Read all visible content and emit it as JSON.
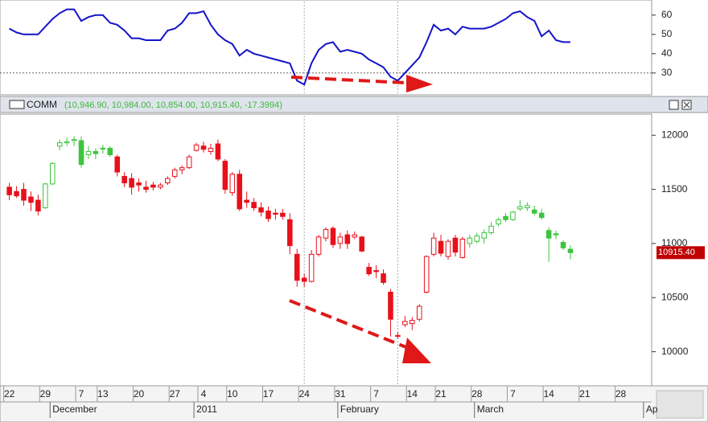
{
  "chart_data": [
    {
      "type": "line",
      "x": [
        0,
        1,
        2,
        3,
        4,
        5,
        6,
        7,
        8,
        9,
        10,
        11,
        12,
        13,
        14,
        15,
        16,
        17,
        18,
        19,
        20,
        21,
        22,
        23,
        24,
        25,
        26,
        27,
        28,
        29,
        30,
        31,
        32,
        33,
        34,
        35,
        36,
        37,
        38,
        39,
        40,
        41,
        42,
        43,
        44,
        45,
        46,
        47,
        48,
        49,
        50,
        51,
        52,
        53,
        54,
        55,
        56,
        57,
        58,
        59,
        60,
        61,
        62,
        63,
        64,
        65,
        66,
        67,
        68,
        69,
        70,
        71,
        72,
        73,
        74,
        75,
        76,
        77,
        78
      ],
      "series": [
        {
          "color": "#1414c8",
          "values": [
            53,
            51,
            50,
            50,
            50,
            54,
            58,
            61,
            63,
            63,
            57,
            59,
            60,
            60,
            56,
            55,
            52,
            48,
            48,
            47,
            47,
            47,
            52,
            53,
            56,
            61,
            61,
            62,
            55,
            50,
            47,
            45,
            39,
            42,
            40,
            39,
            38,
            37,
            36,
            35,
            26,
            24,
            35,
            42,
            45,
            46,
            41,
            42,
            41,
            40,
            37,
            35,
            33,
            28,
            26,
            30,
            34,
            38,
            46,
            55,
            52,
            53,
            50,
            54,
            53,
            53,
            53,
            54,
            56,
            58,
            61,
            62,
            59,
            57,
            49,
            52,
            47,
            46,
            46
          ]
        }
      ],
      "xlim": [
        -1.3,
        89.3
      ],
      "ylim": [
        19.5,
        67
      ],
      "yticks": [
        30,
        40,
        50,
        60
      ],
      "reference_line": 30,
      "vlines": [
        41,
        54
      ]
    },
    {
      "type": "candlestick",
      "title": "COMM",
      "legend": "(10,946.90, 10,984.00, 10,854.00, 10,915.40, -17.3994)",
      "x": [
        0,
        1,
        2,
        3,
        4,
        5,
        6,
        7,
        8,
        9,
        10,
        11,
        12,
        13,
        14,
        15,
        16,
        17,
        18,
        19,
        20,
        21,
        22,
        23,
        24,
        25,
        26,
        27,
        28,
        29,
        30,
        31,
        32,
        33,
        34,
        35,
        36,
        37,
        38,
        39,
        40,
        41,
        42,
        43,
        44,
        45,
        46,
        47,
        48,
        49,
        50,
        51,
        52,
        53,
        54,
        55,
        56,
        57,
        58,
        59,
        60,
        61,
        62,
        63,
        64,
        65,
        66,
        67,
        68,
        69,
        70,
        71,
        72,
        73,
        74,
        75,
        76,
        77,
        78
      ],
      "open": [
        11520,
        11480,
        11500,
        11430,
        11400,
        11330,
        11550,
        11900,
        11930,
        11950,
        11950,
        11820,
        11850,
        11880,
        11880,
        11800,
        11620,
        11600,
        11560,
        11520,
        11540,
        11520,
        11560,
        11620,
        11680,
        11700,
        11860,
        11900,
        11850,
        11920,
        11760,
        11470,
        11640,
        11400,
        11380,
        11330,
        11300,
        11280,
        11280,
        11220,
        10900,
        10680,
        10650,
        10900,
        11050,
        11140,
        11000,
        11080,
        11060,
        11060,
        10780,
        10750,
        10720,
        10550,
        10150,
        10250,
        10260,
        10300,
        10550,
        10900,
        11020,
        10880,
        11050,
        10870,
        11000,
        11020,
        11050,
        11100,
        11180,
        11250,
        11220,
        11320,
        11330,
        11310,
        11280,
        11120,
        11090,
        11010,
        10946.9
      ],
      "high": [
        11560,
        11530,
        11560,
        11480,
        11450,
        11560,
        11750,
        11960,
        11980,
        11990,
        11990,
        11900,
        11880,
        11910,
        11900,
        11820,
        11660,
        11650,
        11600,
        11580,
        11570,
        11560,
        11620,
        11700,
        11720,
        11820,
        11930,
        11940,
        11920,
        11960,
        11780,
        11660,
        11680,
        11480,
        11420,
        11380,
        11340,
        11320,
        11320,
        11280,
        10950,
        10720,
        10940,
        11080,
        11150,
        11160,
        11100,
        11120,
        11110,
        11070,
        10820,
        10800,
        10760,
        10580,
        10180,
        10330,
        10320,
        10440,
        10890,
        11100,
        11080,
        11040,
        11080,
        11060,
        11080,
        11100,
        11130,
        11200,
        11240,
        11280,
        11300,
        11400,
        11380,
        11350,
        11320,
        11150,
        11120,
        11030,
        10984
      ],
      "low": [
        11400,
        11420,
        11350,
        11300,
        11260,
        11320,
        11540,
        11860,
        11900,
        11900,
        11700,
        11780,
        11780,
        11830,
        11800,
        11620,
        11520,
        11450,
        11480,
        11470,
        11490,
        11500,
        11540,
        11600,
        11640,
        11690,
        11850,
        11840,
        11820,
        11760,
        11460,
        11440,
        11300,
        11330,
        11300,
        11250,
        11200,
        11220,
        11220,
        10900,
        10600,
        10600,
        10640,
        10880,
        11020,
        10960,
        10950,
        10950,
        11040,
        10920,
        10700,
        10680,
        10620,
        10140,
        10120,
        10230,
        10200,
        10280,
        10540,
        10880,
        10880,
        10850,
        10880,
        10860,
        10960,
        11000,
        11000,
        11080,
        11160,
        11200,
        11210,
        11300,
        11300,
        11260,
        11220,
        10830,
        11040,
        10940,
        10854
      ],
      "close": [
        11450,
        11440,
        11400,
        11380,
        11300,
        11550,
        11740,
        11930,
        11940,
        11960,
        11730,
        11850,
        11830,
        11880,
        11820,
        11660,
        11560,
        11520,
        11540,
        11500,
        11520,
        11540,
        11600,
        11680,
        11700,
        11800,
        11910,
        11870,
        11880,
        11780,
        11500,
        11640,
        11320,
        11380,
        11330,
        11290,
        11230,
        11270,
        11250,
        10980,
        10660,
        10650,
        10900,
        11060,
        11130,
        10990,
        11060,
        11000,
        11080,
        10930,
        10720,
        10740,
        10640,
        10300,
        10150,
        10280,
        10290,
        10420,
        10880,
        11050,
        10910,
        11020,
        10920,
        11040,
        11050,
        11070,
        11100,
        11160,
        11220,
        11220,
        11290,
        11340,
        11350,
        11280,
        11240,
        11050,
        11080,
        10960,
        10915.4
      ],
      "colors": [
        "#e8101a",
        "#e8101a",
        "#e8101a",
        "#e8101a",
        "#e8101a",
        "#3cc43c",
        "#3cc43c",
        "#3cc43c",
        "#3cc43c",
        "#3cc43c",
        "#3cc43c",
        "#3cc43c",
        "#3cc43c",
        "#3cc43c",
        "#3cc43c",
        "#e8101a",
        "#e8101a",
        "#e8101a",
        "#e8101a",
        "#e8101a",
        "#e8101a",
        "#e8101a",
        "#e8101a",
        "#e8101a",
        "#e8101a",
        "#e8101a",
        "#e8101a",
        "#e8101a",
        "#e8101a",
        "#e8101a",
        "#e8101a",
        "#e8101a",
        "#e8101a",
        "#e8101a",
        "#e8101a",
        "#e8101a",
        "#e8101a",
        "#e8101a",
        "#e8101a",
        "#e8101a",
        "#e8101a",
        "#e8101a",
        "#e8101a",
        "#e8101a",
        "#e8101a",
        "#e8101a",
        "#e8101a",
        "#e8101a",
        "#e8101a",
        "#e8101a",
        "#e8101a",
        "#e8101a",
        "#e8101a",
        "#e8101a",
        "#e8101a",
        "#e8101a",
        "#e8101a",
        "#e8101a",
        "#e8101a",
        "#e8101a",
        "#e8101a",
        "#e8101a",
        "#e8101a",
        "#e8101a",
        "#3cc43c",
        "#3cc43c",
        "#3cc43c",
        "#3cc43c",
        "#3cc43c",
        "#3cc43c",
        "#3cc43c",
        "#3cc43c",
        "#3cc43c",
        "#3cc43c",
        "#3cc43c",
        "#3cc43c",
        "#3cc43c",
        "#3cc43c",
        "#3cc43c"
      ],
      "xlim": [
        -1.3,
        89.3
      ],
      "ylim": [
        9700,
        12180
      ],
      "yticks": [
        10000,
        10500,
        11000,
        11500,
        12000
      ],
      "xticks": [
        {
          "value": 0,
          "label": "22"
        },
        {
          "value": 5,
          "label": "29"
        },
        {
          "value": 10,
          "label": "7"
        },
        {
          "value": 13,
          "label": "13"
        },
        {
          "value": 18,
          "label": "20"
        },
        {
          "value": 23,
          "label": "27"
        },
        {
          "value": 27,
          "label": "4"
        },
        {
          "value": 31,
          "label": "10"
        },
        {
          "value": 36,
          "label": "17"
        },
        {
          "value": 41,
          "label": "24"
        },
        {
          "value": 46,
          "label": "31"
        },
        {
          "value": 51,
          "label": "7"
        },
        {
          "value": 56,
          "label": "14"
        },
        {
          "value": 60,
          "label": "21"
        },
        {
          "value": 65,
          "label": "28"
        },
        {
          "value": 70,
          "label": "7"
        },
        {
          "value": 75,
          "label": "14"
        },
        {
          "value": 80,
          "label": "21"
        },
        {
          "value": 85,
          "label": "28"
        }
      ],
      "month_ticks": [
        {
          "value": 6,
          "label": "December"
        },
        {
          "value": 26,
          "label": "2011"
        },
        {
          "value": 46,
          "label": "February"
        },
        {
          "value": 65,
          "label": "March"
        },
        {
          "value": 88.5,
          "label": "Ap"
        }
      ],
      "vlines": [
        41,
        54
      ],
      "last_label": "10915.40"
    }
  ]
}
